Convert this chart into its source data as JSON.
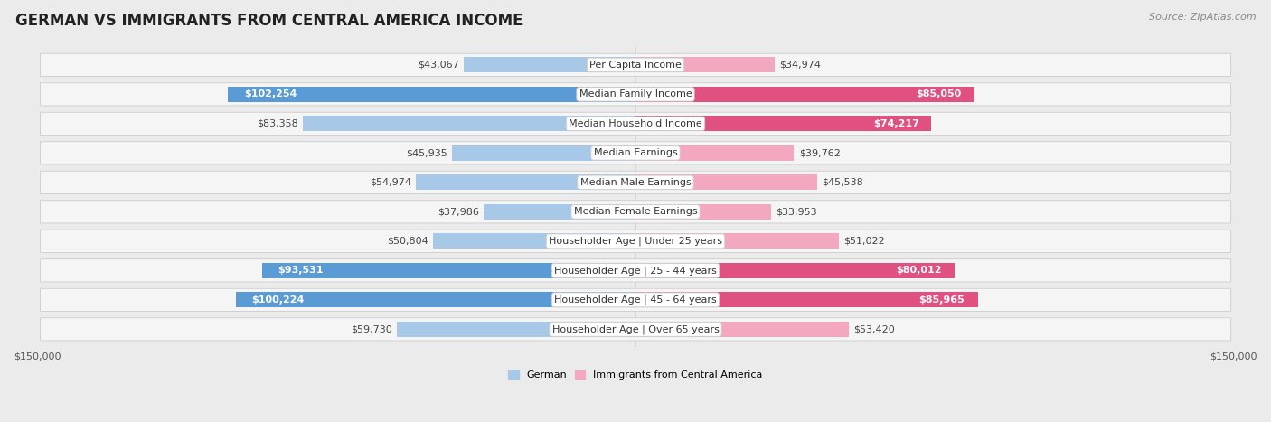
{
  "title": "GERMAN VS IMMIGRANTS FROM CENTRAL AMERICA INCOME",
  "source": "Source: ZipAtlas.com",
  "categories": [
    "Per Capita Income",
    "Median Family Income",
    "Median Household Income",
    "Median Earnings",
    "Median Male Earnings",
    "Median Female Earnings",
    "Householder Age | Under 25 years",
    "Householder Age | 25 - 44 years",
    "Householder Age | 45 - 64 years",
    "Householder Age | Over 65 years"
  ],
  "german_values": [
    43067,
    102254,
    83358,
    45935,
    54974,
    37986,
    50804,
    93531,
    100224,
    59730
  ],
  "immigrant_values": [
    34974,
    85050,
    74217,
    39762,
    45538,
    33953,
    51022,
    80012,
    85965,
    53420
  ],
  "german_labels": [
    "$43,067",
    "$102,254",
    "$83,358",
    "$45,935",
    "$54,974",
    "$37,986",
    "$50,804",
    "$93,531",
    "$100,224",
    "$59,730"
  ],
  "immigrant_labels": [
    "$34,974",
    "$85,050",
    "$74,217",
    "$39,762",
    "$45,538",
    "$33,953",
    "$51,022",
    "$80,012",
    "$85,965",
    "$53,420"
  ],
  "max_value": 150000,
  "german_color_light": "#a8c8e8",
  "german_color_dark": "#5b9bd5",
  "immigrant_color_light": "#f4a8c0",
  "immigrant_color_dark": "#e05080",
  "background_color": "#ebebeb",
  "row_bg_color": "#f5f5f5",
  "row_border_color": "#cccccc",
  "label_box_bg": "#ffffff",
  "label_box_border": "#cccccc",
  "x_tick_label_left": "$150,000",
  "x_tick_label_right": "$150,000",
  "legend_german": "German",
  "legend_immigrant": "Immigrants from Central America",
  "title_fontsize": 12,
  "source_fontsize": 8,
  "label_fontsize": 8,
  "category_fontsize": 8,
  "axis_fontsize": 8,
  "highlight_german_indices": [
    1,
    7,
    8
  ],
  "highlight_immigrant_indices": [
    1,
    2,
    7,
    8
  ]
}
